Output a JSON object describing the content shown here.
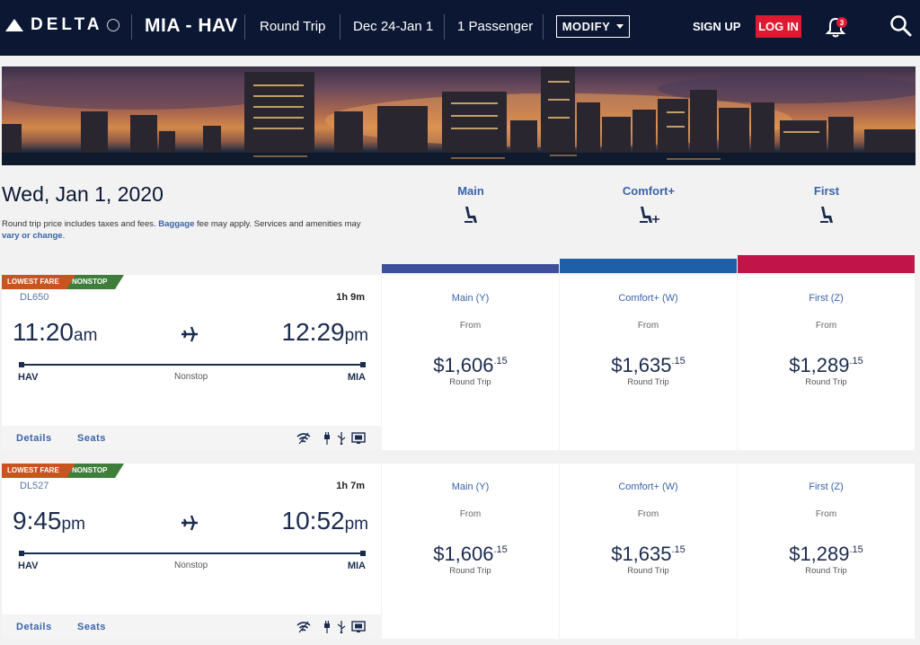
{
  "header": {
    "brand": "DELTA",
    "route": "MIA - HAV",
    "trip_type": "Round Trip",
    "dates": "Dec 24-Jan 1",
    "passengers": "1 Passenger",
    "modify_label": "MODIFY",
    "signup_label": "SIGN UP",
    "login_label": "LOG IN",
    "notification_count": "3",
    "icons": [
      "airplane-logo-icon",
      "bell-icon",
      "search-icon"
    ]
  },
  "page": {
    "date_title": "Wed, Jan 1, 2020",
    "info_a": "Round trip price includes taxes and fees. ",
    "info_link1": "Baggage",
    "info_b": " fee may apply. Services and amenities may ",
    "info_link2": "vary or change",
    "info_c": "."
  },
  "cabins": [
    {
      "name": "Main",
      "color": "#3d4f9a"
    },
    {
      "name": "Comfort+",
      "color": "#1f5fa8"
    },
    {
      "name": "First",
      "color": "#c1154a"
    }
  ],
  "flights": [
    {
      "tag_fare": "LOWEST FARE",
      "tag_stop": "NONSTOP",
      "number": "DL650",
      "duration": "1h 9m",
      "dep_time": "11:20",
      "dep_ampm": "am",
      "arr_time": "12:29",
      "arr_ampm": "pm",
      "origin": "HAV",
      "stops": "Nonstop",
      "destination": "MIA",
      "details_label": "Details",
      "seats_label": "Seats",
      "fares": [
        {
          "name": "Main (Y)",
          "from": "From",
          "dollars": "$1,606",
          "cents": ".15",
          "note": "Round Trip"
        },
        {
          "name": "Comfort+ (W)",
          "from": "From",
          "dollars": "$1,635",
          "cents": ".15",
          "note": "Round Trip"
        },
        {
          "name": "First (Z)",
          "from": "From",
          "dollars": "$1,289",
          "cents": ".15",
          "note": "Round Trip"
        }
      ]
    },
    {
      "tag_fare": "LOWEST FARE",
      "tag_stop": "NONSTOP",
      "number": "DL527",
      "duration": "1h 7m",
      "dep_time": "9:45",
      "dep_ampm": "pm",
      "arr_time": "10:52",
      "arr_ampm": "pm",
      "origin": "HAV",
      "stops": "Nonstop",
      "destination": "MIA",
      "details_label": "Details",
      "seats_label": "Seats",
      "fares": [
        {
          "name": "Main (Y)",
          "from": "From",
          "dollars": "$1,606",
          "cents": ".15",
          "note": "Round Trip"
        },
        {
          "name": "Comfort+ (W)",
          "from": "From",
          "dollars": "$1,635",
          "cents": ".15",
          "note": "Round Trip"
        },
        {
          "name": "First (Z)",
          "from": "From",
          "dollars": "$1,289",
          "cents": ".15",
          "note": "Round Trip"
        }
      ]
    }
  ],
  "amenity_icons": [
    "wifi-icon",
    "power-outlet-icon",
    "usb-icon",
    "entertainment-screen-icon"
  ]
}
